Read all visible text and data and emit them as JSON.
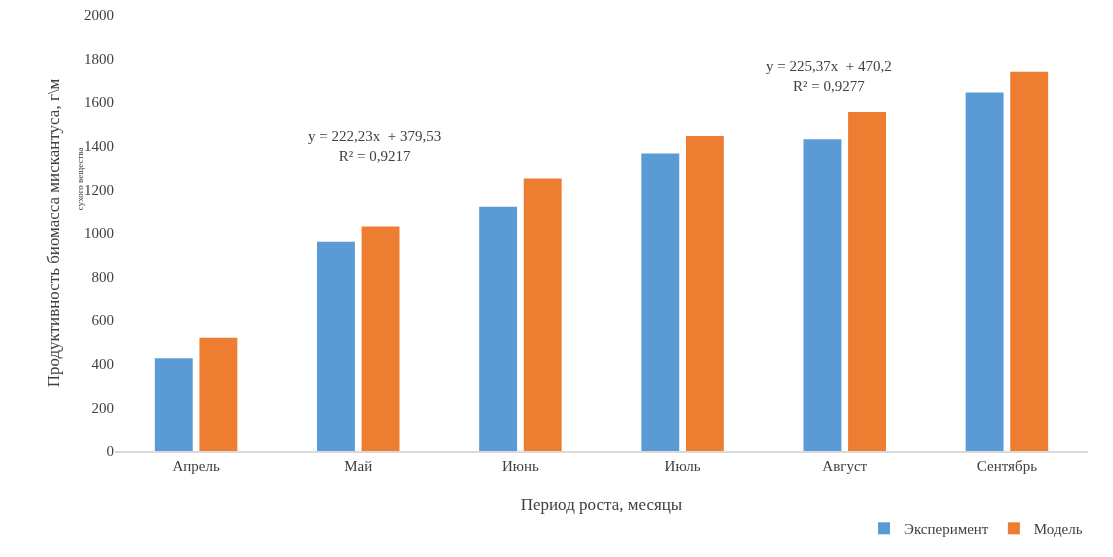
{
  "chart_data": {
    "type": "bar",
    "xlabel": "Период роста, месяцы",
    "ylabel": "Продуктивность биомасса мискантуса, г\\м",
    "categories": [
      "Апрель",
      "Май",
      "Июнь",
      "Июль",
      "Август",
      "Сентябрь"
    ],
    "series": [
      {
        "name": "Эксперимент",
        "color": "#5b9bd5",
        "values": [
          425,
          960,
          1120,
          1365,
          1430,
          1645
        ]
      },
      {
        "name": "Модель",
        "color": "#ed7d31",
        "values": [
          520,
          1030,
          1250,
          1445,
          1555,
          1740
        ]
      }
    ],
    "ylim": [
      0,
      2000
    ],
    "yticks": [
      0,
      200,
      400,
      600,
      800,
      1000,
      1200,
      1400,
      1600,
      1800,
      2000
    ],
    "grid": false,
    "legend": "bottom right",
    "annotations": [
      "y = 222,23x  + 379,53\nR² = 0,9217",
      "y = 225,37x  + 470,2\nR² = 0,9277",
      "сухого вещества"
    ]
  }
}
